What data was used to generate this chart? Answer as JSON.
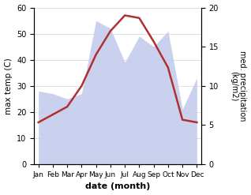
{
  "months": [
    "Jan",
    "Feb",
    "Mar",
    "Apr",
    "May",
    "Jun",
    "Jul",
    "Aug",
    "Sep",
    "Oct",
    "Nov",
    "Dec"
  ],
  "temperature": [
    16,
    19,
    22,
    30,
    42,
    51,
    57,
    56,
    47,
    37,
    17,
    16
  ],
  "precip_area_left": [
    28,
    27,
    25,
    27,
    55,
    52,
    39,
    49,
    45,
    51,
    21,
    33
  ],
  "temp_color": "#b03030",
  "precip_fill_color": "#c5ccee",
  "ylabel_left": "max temp (C)",
  "ylabel_right": "med. precipitation\n(kg/m2)",
  "xlabel": "date (month)",
  "ylim_left": [
    0,
    60
  ],
  "ylim_right": [
    0,
    20
  ],
  "yticks_left": [
    0,
    10,
    20,
    30,
    40,
    50,
    60
  ],
  "yticks_right": [
    0,
    5,
    10,
    15,
    20
  ]
}
